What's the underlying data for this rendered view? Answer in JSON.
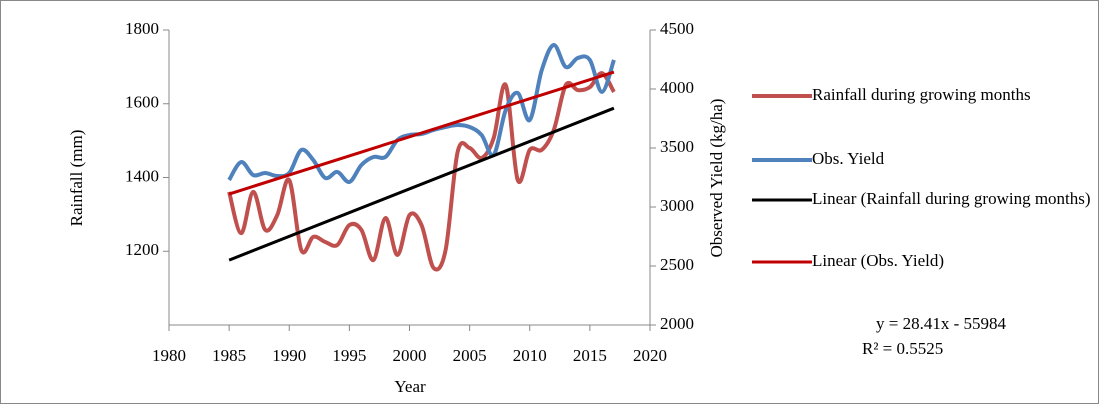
{
  "chart_data": {
    "type": "line",
    "x_label": "Year",
    "y_label": "Rainfall (mm)",
    "y2_label": "Observed Yield (kg/ha)",
    "x": [
      1985,
      1986,
      1987,
      1988,
      1989,
      1990,
      1991,
      1992,
      1993,
      1994,
      1995,
      1996,
      1997,
      1998,
      1999,
      2000,
      2001,
      2002,
      2003,
      2004,
      2005,
      2006,
      2007,
      2008,
      2009,
      2010,
      2011,
      2012,
      2013,
      2014,
      2015,
      2016,
      2017
    ],
    "xlim": [
      1980,
      2020
    ],
    "xticks": [
      1980,
      1985,
      1990,
      1995,
      2000,
      2005,
      2010,
      2015,
      2020
    ],
    "ylim": [
      1000,
      1800
    ],
    "yticks": [
      1200,
      1400,
      1600,
      1800
    ],
    "y2lim": [
      2000,
      4500
    ],
    "y2ticks": [
      2000,
      2500,
      3000,
      3500,
      4000,
      4500
    ],
    "series": [
      {
        "name": "Rainfall during growing months",
        "color": "#c0504d",
        "width": 4,
        "smooth": true,
        "values": [
          1361,
          1249,
          1361,
          1258,
          1298,
          1393,
          1203,
          1239,
          1225,
          1217,
          1271,
          1258,
          1176,
          1290,
          1190,
          1298,
          1271,
          1155,
          1203,
          1469,
          1480,
          1453,
          1507,
          1651,
          1393,
          1475,
          1475,
          1529,
          1651,
          1637,
          1645,
          1683,
          1632
        ]
      },
      {
        "name": "Obs. Yield",
        "color": "#4f81bd",
        "width": 4,
        "smooth": true,
        "axis": "y2",
        "values": [
          3229,
          3381,
          3271,
          3288,
          3263,
          3288,
          3483,
          3398,
          3246,
          3297,
          3212,
          3356,
          3424,
          3424,
          3568,
          3610,
          3619,
          3653,
          3678,
          3695,
          3678,
          3610,
          3441,
          3822,
          3966,
          3737,
          4161,
          4373,
          4186,
          4263,
          4246,
          3975,
          4246
        ]
      },
      {
        "name": "Linear (Rainfall during growing months)",
        "color": "#000000",
        "width": 3,
        "x": [
          1985,
          2017
        ],
        "values": [
          1176,
          1588
        ]
      },
      {
        "name": "Linear (Obs. Yield)",
        "color": "#c00000",
        "width": 3,
        "axis": "y2",
        "x": [
          1985,
          2017
        ],
        "values": [
          3110,
          4144
        ]
      }
    ],
    "annotations": [
      "y = 28.41x - 55984",
      "R² = 0.5525"
    ]
  }
}
